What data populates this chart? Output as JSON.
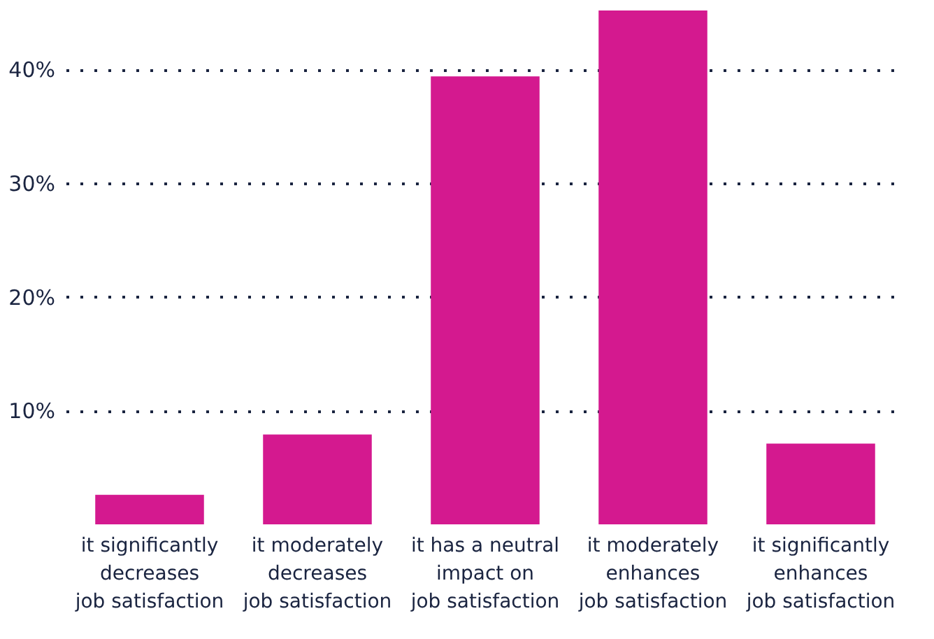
{
  "chart_data": {
    "type": "bar",
    "categories": [
      "it significantly\ndecreases\njob satisfaction",
      "it moderately\ndecreases\njob satisfaction",
      "it has a neutral\nimpact on\njob satisfaction",
      "it moderately\nenhances\njob satisfaction",
      "it significantly\nenhances\njob satisfaction"
    ],
    "values": [
      2.6,
      7.9,
      39.4,
      45.2,
      7.1
    ],
    "color": "#d4198f",
    "ylim": [
      0,
      45.5
    ],
    "yticks": [
      {
        "value": 10,
        "label": "10%"
      },
      {
        "value": 20,
        "label": "20%"
      },
      {
        "value": 30,
        "label": "30%"
      },
      {
        "value": 40,
        "label": "40%"
      }
    ],
    "grid": "y"
  }
}
